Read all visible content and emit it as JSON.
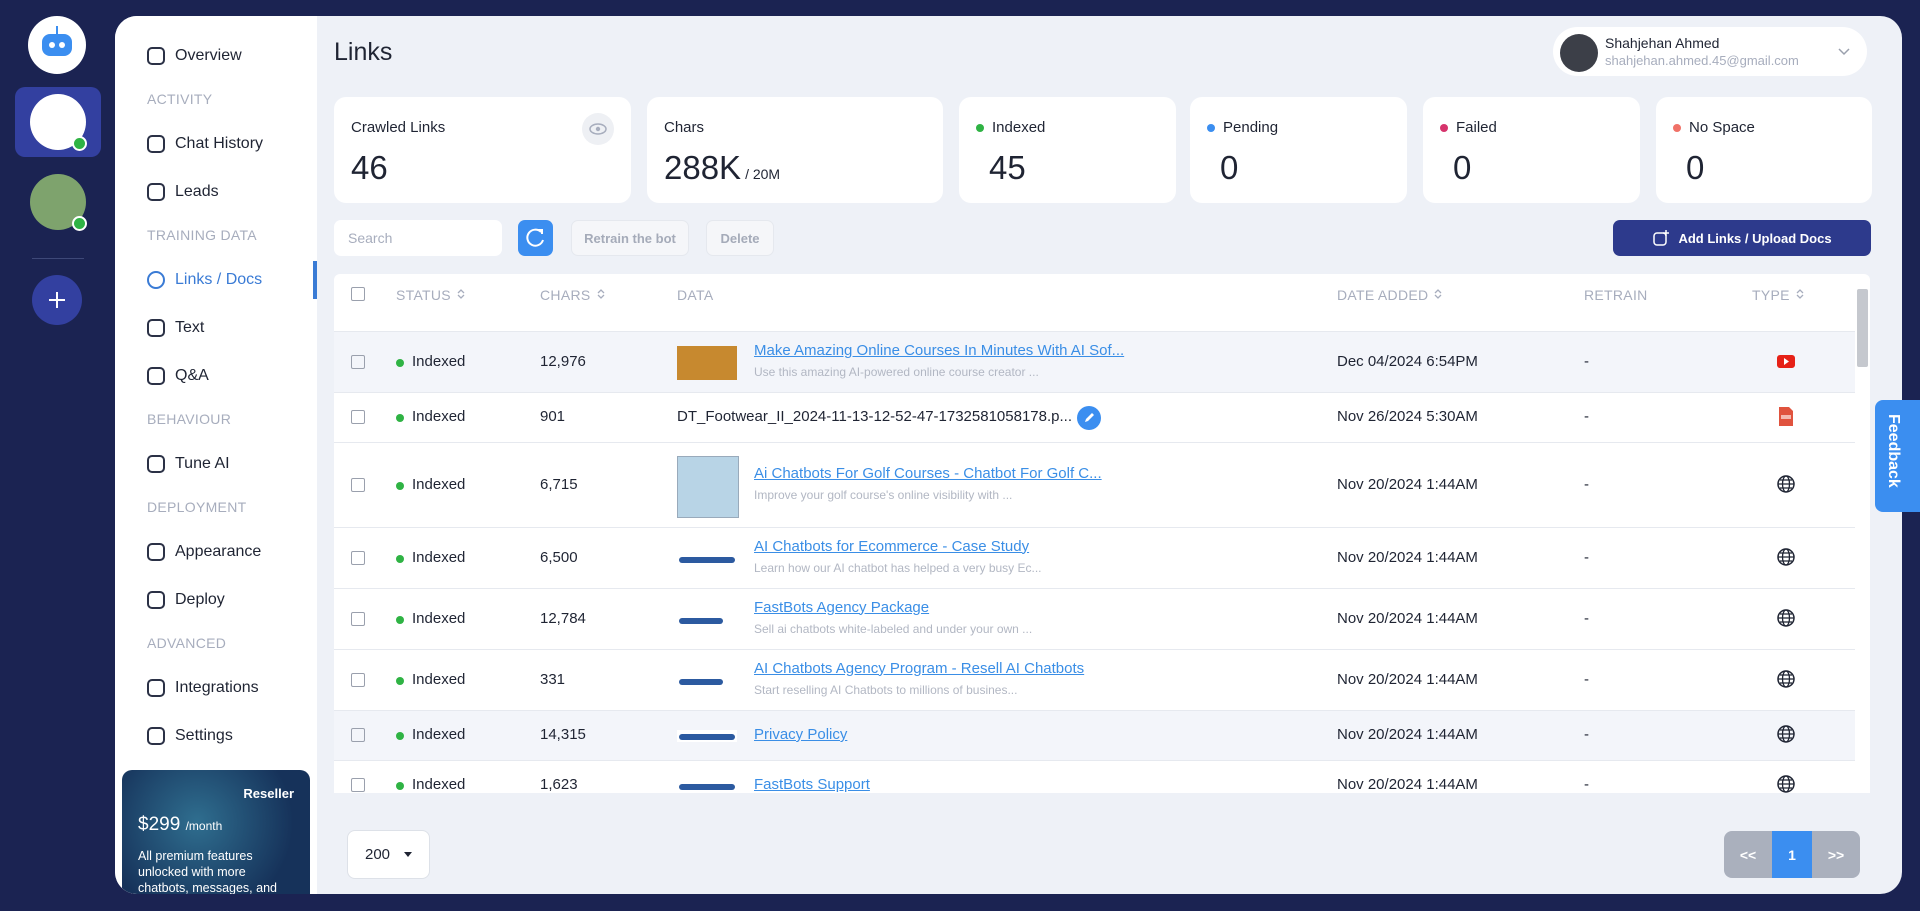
{
  "sidebar": {
    "items": [
      {
        "label": "Overview"
      },
      {
        "section": "ACTIVITY"
      },
      {
        "label": "Chat History"
      },
      {
        "label": "Leads"
      },
      {
        "section": "TRAINING DATA"
      },
      {
        "label": "Links / Docs"
      },
      {
        "label": "Text"
      },
      {
        "label": "Q&A"
      },
      {
        "section": "BEHAVIOUR"
      },
      {
        "label": "Tune AI"
      },
      {
        "section": "DEPLOYMENT"
      },
      {
        "label": "Appearance"
      },
      {
        "label": "Deploy"
      },
      {
        "section": "ADVANCED"
      },
      {
        "label": "Integrations"
      },
      {
        "label": "Settings"
      }
    ],
    "reseller": {
      "badge": "Reseller",
      "price": "$299",
      "period": "/month",
      "text": "All premium features unlocked with more chatbots, messages, and"
    }
  },
  "header": {
    "title": "Links",
    "user": {
      "name": "Shahjehan Ahmed",
      "email": "shahjehan.ahmed.45@gmail.com"
    }
  },
  "stats": [
    {
      "label": "Crawled Links",
      "value": "46"
    },
    {
      "label": "Chars",
      "value": "288K",
      "suffix": "/ 20M"
    },
    {
      "label": "Indexed",
      "value": "45"
    },
    {
      "label": "Pending",
      "value": "0"
    },
    {
      "label": "Failed",
      "value": "0"
    },
    {
      "label": "No Space",
      "value": "0"
    }
  ],
  "toolbar": {
    "search": "Search",
    "retrain": "Retrain the bot",
    "delete": "Delete",
    "add": "Add Links / Upload Docs"
  },
  "table": {
    "columns": [
      "STATUS",
      "CHARS",
      "DATA",
      "DATE ADDED",
      "RETRAIN",
      "TYPE"
    ],
    "rows": [
      {
        "status": "Indexed",
        "chars": "12,976",
        "title": "Make Amazing Online Courses In Minutes With AI Sof...",
        "desc": "Use this amazing AI-powered online course creator ...",
        "date": "Dec 04/2024 6:54PM",
        "retrain": "-"
      },
      {
        "status": "Indexed",
        "chars": "901",
        "title": "DT_Footwear_II_2024-11-13-12-52-47-1732581058178.p...",
        "date": "Nov 26/2024 5:30AM",
        "retrain": "-"
      },
      {
        "status": "Indexed",
        "chars": "6,715",
        "title": "Ai Chatbots For Golf Courses - Chatbot For Golf C...",
        "desc": "Improve your golf course's online visibility with ...",
        "date": "Nov 20/2024 1:44AM",
        "retrain": "-"
      },
      {
        "status": "Indexed",
        "chars": "6,500",
        "title": "AI Chatbots for Ecommerce - Case Study",
        "desc": "Learn how our AI chatbot has helped a very busy Ec...",
        "date": "Nov 20/2024 1:44AM",
        "retrain": "-"
      },
      {
        "status": "Indexed",
        "chars": "12,784",
        "title": "FastBots Agency Package",
        "desc": "Sell ai chatbots white-labeled and under your own ...",
        "date": "Nov 20/2024 1:44AM",
        "retrain": "-"
      },
      {
        "status": "Indexed",
        "chars": "331",
        "title": "AI Chatbots Agency Program - Resell AI Chatbots",
        "desc": "Start reselling AI Chatbots to millions of busines...",
        "date": "Nov 20/2024 1:44AM",
        "retrain": "-"
      },
      {
        "status": "Indexed",
        "chars": "14,315",
        "title": "Privacy Policy",
        "date": "Nov 20/2024 1:44AM",
        "retrain": "-"
      },
      {
        "status": "Indexed",
        "chars": "1,623",
        "title": "FastBots Support",
        "date": "Nov 20/2024 1:44AM",
        "retrain": "-"
      }
    ]
  },
  "pagination": {
    "page_size": "200",
    "prev": "<<",
    "page": "1",
    "next": ">>"
  },
  "feedback": "Feedback"
}
